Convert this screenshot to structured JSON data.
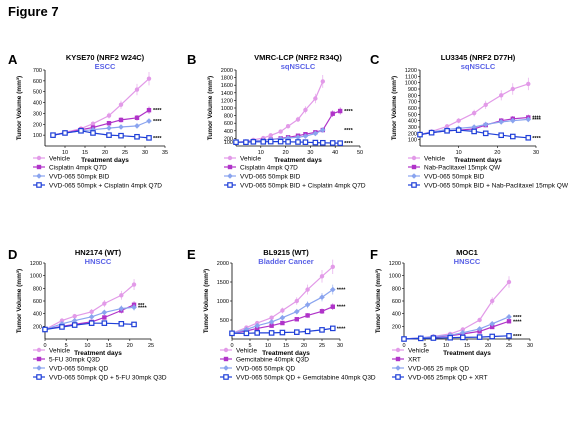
{
  "figure_title": "Figure 7",
  "colors": {
    "vehicle": "#e29ae8",
    "drug": "#b033c9",
    "vvd": "#8aa4ef",
    "combo": "#1f3fd8",
    "subtitle": "#5a62e6"
  },
  "common": {
    "xlabel": "Treatment days",
    "ylabel": "Tumor Volume (mm³)",
    "sig": "****"
  },
  "chart_data": [
    {
      "type": "line",
      "panel_letter": "A",
      "title": "KYSE70 (NRF2 W24C)",
      "subtitle": "ESCC",
      "xlim": [
        5,
        35
      ],
      "ylim": [
        0,
        700
      ],
      "xticks": [
        "10",
        "15",
        "20",
        "25",
        "30",
        "35"
      ],
      "yticks": [
        "100",
        "200",
        "300",
        "400",
        "500",
        "600",
        "700"
      ],
      "series": [
        {
          "name": "Vehicle",
          "x": [
            7,
            10,
            14,
            17,
            21,
            24,
            28,
            31
          ],
          "y": [
            100,
            125,
            160,
            205,
            280,
            380,
            520,
            620
          ]
        },
        {
          "name": "Cisplatin 4mpk Q7D",
          "x": [
            7,
            10,
            14,
            17,
            21,
            24,
            28,
            31
          ],
          "y": [
            100,
            120,
            150,
            170,
            210,
            240,
            260,
            330
          ]
        },
        {
          "name": "VVD-065 50mpk BID",
          "x": [
            7,
            10,
            14,
            17,
            21,
            24,
            28,
            31
          ],
          "y": [
            100,
            120,
            140,
            150,
            165,
            175,
            185,
            230
          ]
        },
        {
          "name": "VVD-065 50mpk + Cisplatin 4mpk Q7D",
          "x": [
            7,
            10,
            14,
            17,
            21,
            24,
            28,
            31
          ],
          "y": [
            100,
            120,
            140,
            120,
            100,
            95,
            85,
            75
          ]
        }
      ],
      "sig_labels": [
        "****",
        "****",
        "****"
      ]
    },
    {
      "type": "line",
      "panel_letter": "B",
      "title": "VMRC-LCP (NRF2 R34Q)",
      "subtitle": "sqNSCLC",
      "xlim": [
        0,
        50
      ],
      "ylim": [
        0,
        2000
      ],
      "xticks": [
        "10",
        "20",
        "30",
        "40",
        "50"
      ],
      "yticks": [
        "100",
        "200",
        "400",
        "600",
        "800",
        "1000",
        "1200",
        "1400",
        "1600",
        "1800",
        "2000"
      ],
      "series": [
        {
          "name": "Vehicle",
          "x": [
            0,
            4,
            7,
            11,
            14,
            18,
            21,
            25,
            28,
            32,
            35
          ],
          "y": [
            100,
            120,
            160,
            210,
            280,
            380,
            520,
            700,
            950,
            1250,
            1700
          ]
        },
        {
          "name": "Cisplatin 4mpk Q7D",
          "x": [
            0,
            4,
            7,
            11,
            14,
            18,
            21,
            25,
            28,
            32,
            35,
            39,
            42
          ],
          "y": [
            100,
            110,
            130,
            150,
            170,
            200,
            230,
            270,
            310,
            360,
            420,
            850,
            920
          ]
        },
        {
          "name": "VVD-065 50mpk BID",
          "x": [
            0,
            4,
            7,
            11,
            14,
            18,
            21,
            25,
            28,
            32,
            35
          ],
          "y": [
            100,
            110,
            130,
            150,
            170,
            190,
            210,
            230,
            260,
            330,
            420
          ]
        },
        {
          "name": "VVD-065 50mpk BID + Cisplatin 4mpk  Q7D",
          "x": [
            0,
            4,
            7,
            11,
            14,
            18,
            21,
            25,
            28,
            32,
            35,
            39,
            42
          ],
          "y": [
            100,
            100,
            110,
            110,
            115,
            115,
            110,
            105,
            100,
            90,
            85,
            80,
            75
          ]
        }
      ],
      "sig_labels": [
        "****",
        "****",
        "****"
      ]
    },
    {
      "type": "line",
      "panel_letter": "C",
      "title": "LU3345 (NRF2 D77H)",
      "subtitle": "sqNSCLC",
      "xlim": [
        0,
        30
      ],
      "ylim": [
        0,
        1200
      ],
      "xticks": [
        "10",
        "20",
        "30"
      ],
      "yticks": [
        "100",
        "200",
        "300",
        "400",
        "500",
        "600",
        "700",
        "800",
        "900",
        "1000",
        "1100",
        "1200"
      ],
      "series": [
        {
          "name": "Vehicle",
          "x": [
            0,
            3,
            7,
            10,
            14,
            17,
            21,
            24,
            28
          ],
          "y": [
            180,
            230,
            310,
            400,
            520,
            650,
            800,
            900,
            980
          ]
        },
        {
          "name": "Nab-Paclitaxel 15mpk QW",
          "x": [
            0,
            3,
            7,
            10,
            14,
            17,
            21,
            24,
            28
          ],
          "y": [
            180,
            210,
            240,
            250,
            270,
            330,
            400,
            430,
            450
          ]
        },
        {
          "name": "VVD-065 50mpk BID",
          "x": [
            0,
            3,
            7,
            10,
            14,
            17,
            21,
            24,
            28
          ],
          "y": [
            180,
            220,
            260,
            280,
            300,
            340,
            380,
            400,
            420
          ]
        },
        {
          "name": "VVD-065 50mpk BID + Nab-Paclitaxel 15mpk QW",
          "x": [
            0,
            3,
            7,
            10,
            14,
            17,
            21,
            24,
            28
          ],
          "y": [
            180,
            210,
            240,
            250,
            230,
            200,
            170,
            150,
            130
          ]
        }
      ],
      "sig_labels": [
        "****",
        "****",
        "****"
      ]
    },
    {
      "type": "line",
      "panel_letter": "D",
      "title": "HN2174 (WT)",
      "subtitle": "HNSCC",
      "xlim": [
        0,
        25
      ],
      "ylim": [
        0,
        1200
      ],
      "xticks": [
        "0",
        "5",
        "10",
        "15",
        "20",
        "25"
      ],
      "yticks": [
        "200",
        "400",
        "600",
        "800",
        "1000",
        "1200"
      ],
      "series": [
        {
          "name": "Vehicle",
          "x": [
            0,
            4,
            7,
            11,
            14,
            18,
            21
          ],
          "y": [
            150,
            290,
            360,
            430,
            560,
            690,
            860
          ]
        },
        {
          "name": "5-FU 30mpk Q3D",
          "x": [
            0,
            4,
            7,
            11,
            14,
            18,
            21
          ],
          "y": [
            150,
            200,
            230,
            270,
            340,
            450,
            540
          ]
        },
        {
          "name": "VVD-065 50mpk QD",
          "x": [
            0,
            4,
            7,
            11,
            14,
            18,
            21
          ],
          "y": [
            150,
            240,
            290,
            350,
            420,
            480,
            500
          ]
        },
        {
          "name": "VVD-065 50mpk QD + 5-FU 30mpk Q3D",
          "x": [
            0,
            4,
            7,
            11,
            14,
            18,
            21
          ],
          "y": [
            150,
            190,
            220,
            250,
            250,
            240,
            230
          ]
        }
      ],
      "sig_labels": [
        "***",
        "****"
      ]
    },
    {
      "type": "line",
      "panel_letter": "E",
      "title": "BL9215 (WT)",
      "subtitle": "Bladder Cancer",
      "xlim": [
        0,
        30
      ],
      "ylim": [
        0,
        2000
      ],
      "xticks": [
        "0",
        "5",
        "10",
        "15",
        "20",
        "25",
        "30"
      ],
      "yticks": [
        "500",
        "1000",
        "1500",
        "2000"
      ],
      "series": [
        {
          "name": "Vehicle",
          "x": [
            0,
            4,
            7,
            11,
            14,
            18,
            21,
            25,
            28
          ],
          "y": [
            150,
            300,
            420,
            560,
            750,
            1000,
            1300,
            1650,
            1900
          ]
        },
        {
          "name": "Gemcitabine 40mpk Q3D",
          "x": [
            0,
            4,
            7,
            11,
            14,
            18,
            21,
            25,
            28
          ],
          "y": [
            150,
            210,
            280,
            350,
            420,
            520,
            620,
            730,
            850
          ]
        },
        {
          "name": "VVD-065 50mpk QD",
          "x": [
            0,
            4,
            7,
            11,
            14,
            18,
            21,
            25,
            28
          ],
          "y": [
            150,
            250,
            350,
            450,
            560,
            720,
            900,
            1100,
            1300
          ]
        },
        {
          "name": "VVD-065 50mpk QD + Gemcitabine 40mpk Q3D",
          "x": [
            0,
            4,
            7,
            11,
            14,
            18,
            21,
            25,
            28
          ],
          "y": [
            150,
            150,
            160,
            160,
            170,
            180,
            200,
            240,
            280
          ]
        }
      ],
      "sig_labels": [
        "****",
        "****",
        "****"
      ]
    },
    {
      "type": "line",
      "panel_letter": "F",
      "title": "MOC1",
      "subtitle": "HNSCC",
      "xlim": [
        0,
        30
      ],
      "ylim": [
        0,
        1200
      ],
      "xticks": [
        "0",
        "5",
        "10",
        "15",
        "20",
        "25",
        "30"
      ],
      "yticks": [
        "200",
        "400",
        "600",
        "800",
        "1000",
        "1200"
      ],
      "series": [
        {
          "name": "Vehicle",
          "x": [
            0,
            4,
            7,
            11,
            14,
            18,
            21,
            25
          ],
          "y": [
            0,
            20,
            40,
            80,
            150,
            300,
            600,
            900
          ]
        },
        {
          "name": "XRT",
          "x": [
            0,
            4,
            7,
            11,
            14,
            18,
            21,
            25
          ],
          "y": [
            0,
            15,
            30,
            50,
            80,
            120,
            190,
            280
          ]
        },
        {
          "name": "VVD-065 25 mpk QD",
          "x": [
            0,
            4,
            7,
            11,
            14,
            18,
            21,
            25
          ],
          "y": [
            0,
            18,
            35,
            60,
            100,
            160,
            240,
            350
          ]
        },
        {
          "name": "VVD-065 25mpk QD + XRT",
          "x": [
            0,
            4,
            7,
            11,
            14,
            18,
            21,
            25
          ],
          "y": [
            0,
            10,
            15,
            20,
            25,
            30,
            40,
            50
          ]
        }
      ],
      "sig_labels": [
        "****",
        "****",
        "****"
      ]
    }
  ]
}
